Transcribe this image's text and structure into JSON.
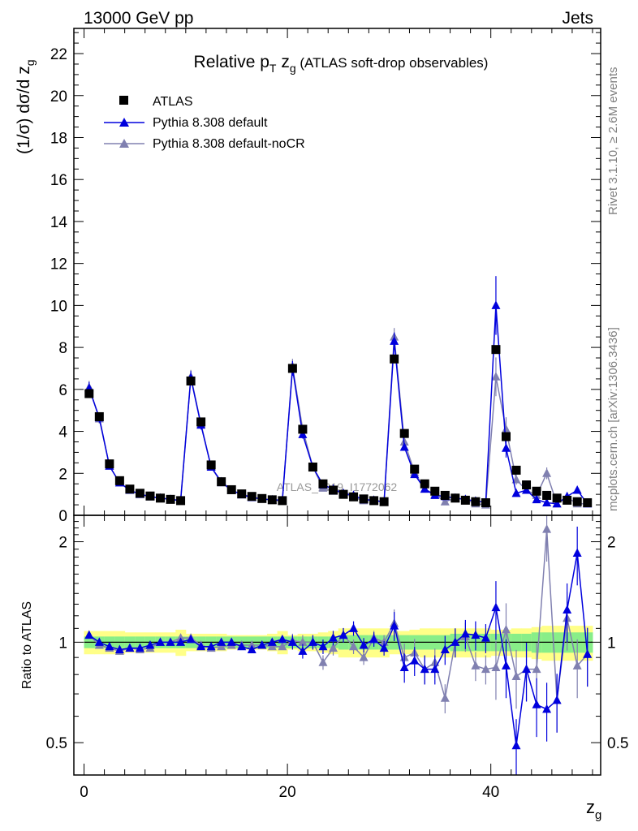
{
  "header": {
    "left": "13000 GeV pp",
    "right": "Jets"
  },
  "side": {
    "rivet": "Rivet 3.1.10, ≥ 2.6M events",
    "mcplots": "mcplots.cern.ch [arXiv:1306.3436]"
  },
  "watermark": "ATLAS_2019_I1772062",
  "colors": {
    "atlas": "#000000",
    "default": "#0000dd",
    "nocr": "#8080b0",
    "band_inner": "#88ee88",
    "band_outer": "#ffff88"
  },
  "chart_data": [
    {
      "type": "line",
      "panel": "main",
      "title_main": "Relative p",
      "title_sub_T": "T",
      "title_z": " z",
      "title_sub_g": "g",
      "title_rest": " (ATLAS soft-drop observables)",
      "ylabel": "(1/σ) dσ/d z",
      "ylabel_sub": "g",
      "ylim": [
        0,
        23.2
      ],
      "xlim": [
        -1.0,
        50.8
      ],
      "yticks": [
        0,
        2,
        4,
        6,
        8,
        10,
        12,
        14,
        16,
        18,
        20,
        22
      ],
      "x": [
        0.5,
        1.5,
        2.5,
        3.5,
        4.5,
        5.5,
        6.5,
        7.5,
        8.5,
        9.5,
        10.5,
        11.5,
        12.5,
        13.5,
        14.5,
        15.5,
        16.5,
        17.5,
        18.5,
        19.5,
        20.5,
        21.5,
        22.5,
        23.5,
        24.5,
        25.5,
        26.5,
        27.5,
        28.5,
        29.5,
        30.5,
        31.5,
        32.5,
        33.5,
        34.5,
        35.5,
        36.5,
        37.5,
        38.5,
        39.5,
        40.5,
        41.5,
        42.5,
        43.5,
        44.5,
        45.5,
        46.5,
        47.5,
        48.5,
        49.5
      ],
      "series": [
        {
          "name": "ATLAS",
          "values": [
            5.8,
            4.7,
            2.45,
            1.65,
            1.25,
            1.05,
            0.92,
            0.82,
            0.76,
            0.7,
            6.4,
            4.45,
            2.4,
            1.6,
            1.22,
            1.02,
            0.9,
            0.8,
            0.74,
            0.7,
            7.0,
            4.1,
            2.3,
            1.5,
            1.2,
            1.0,
            0.88,
            0.78,
            0.7,
            0.65,
            7.45,
            3.9,
            2.2,
            1.5,
            1.15,
            0.95,
            0.82,
            0.72,
            0.65,
            0.6,
            7.9,
            3.75,
            2.15,
            1.45,
            1.15,
            0.95,
            0.82,
            0.72,
            0.65,
            0.6
          ]
        },
        {
          "name": "Pythia 8.308 default",
          "values": [
            6.05,
            4.65,
            2.35,
            1.55,
            1.2,
            1.0,
            0.9,
            0.82,
            0.76,
            0.7,
            6.55,
            4.3,
            2.3,
            1.6,
            1.2,
            0.98,
            0.85,
            0.78,
            0.74,
            0.72,
            7.0,
            3.85,
            2.3,
            1.45,
            1.25,
            1.05,
            0.95,
            0.75,
            0.72,
            0.62,
            8.3,
            3.25,
            1.95,
            1.25,
            0.95,
            0.9,
            0.82,
            0.76,
            0.68,
            0.62,
            10.0,
            3.2,
            1.05,
            1.2,
            0.75,
            0.6,
            0.55,
            0.9,
            1.2,
            0.55
          ]
        },
        {
          "name": "Pythia 8.308 default-noCR",
          "values": [
            6.1,
            4.6,
            2.35,
            1.55,
            1.2,
            1.0,
            0.88,
            0.82,
            0.76,
            0.72,
            6.6,
            4.35,
            2.3,
            1.55,
            1.2,
            1.0,
            0.88,
            0.78,
            0.72,
            0.68,
            7.1,
            4.1,
            2.3,
            1.3,
            1.15,
            1.05,
            0.85,
            0.7,
            0.72,
            0.65,
            8.5,
            3.5,
            2.05,
            1.25,
            1.0,
            0.65,
            0.82,
            0.75,
            0.55,
            0.5,
            6.6,
            4.1,
            1.7,
            1.2,
            0.95,
            2.0,
            0.55,
            0.85,
            0.55,
            0.55
          ]
        }
      ]
    },
    {
      "type": "line",
      "panel": "ratio",
      "ylabel": "Ratio to ATLAS",
      "xlabel": "z",
      "xlabel_sub": "g",
      "ylim": [
        0.4,
        2.4
      ],
      "xlim": [
        -1.0,
        50.8
      ],
      "xticks": [
        0,
        20,
        40
      ],
      "yticks": [
        0.5,
        1,
        2
      ],
      "yscale": "log",
      "x": [
        0.5,
        1.5,
        2.5,
        3.5,
        4.5,
        5.5,
        6.5,
        7.5,
        8.5,
        9.5,
        10.5,
        11.5,
        12.5,
        13.5,
        14.5,
        15.5,
        16.5,
        17.5,
        18.5,
        19.5,
        20.5,
        21.5,
        22.5,
        23.5,
        24.5,
        25.5,
        26.5,
        27.5,
        28.5,
        29.5,
        30.5,
        31.5,
        32.5,
        33.5,
        34.5,
        35.5,
        36.5,
        37.5,
        38.5,
        39.5,
        40.5,
        41.5,
        42.5,
        43.5,
        44.5,
        45.5,
        46.5,
        47.5,
        48.5,
        49.5
      ],
      "band_inner": [
        0.04,
        0.04,
        0.04,
        0.04,
        0.04,
        0.04,
        0.04,
        0.04,
        0.04,
        0.04,
        0.04,
        0.04,
        0.04,
        0.04,
        0.04,
        0.04,
        0.04,
        0.04,
        0.04,
        0.04,
        0.04,
        0.04,
        0.04,
        0.04,
        0.04,
        0.05,
        0.05,
        0.05,
        0.05,
        0.05,
        0.05,
        0.05,
        0.05,
        0.05,
        0.05,
        0.05,
        0.06,
        0.06,
        0.06,
        0.06,
        0.06,
        0.06,
        0.06,
        0.06,
        0.07,
        0.07,
        0.07,
        0.07,
        0.07,
        0.07
      ],
      "band_outer": [
        0.08,
        0.08,
        0.08,
        0.08,
        0.07,
        0.07,
        0.07,
        0.07,
        0.07,
        0.09,
        0.06,
        0.06,
        0.06,
        0.06,
        0.05,
        0.05,
        0.05,
        0.05,
        0.06,
        0.08,
        0.05,
        0.06,
        0.06,
        0.07,
        0.08,
        0.1,
        0.1,
        0.1,
        0.1,
        0.1,
        0.08,
        0.08,
        0.09,
        0.1,
        0.1,
        0.1,
        0.1,
        0.1,
        0.1,
        0.1,
        0.09,
        0.09,
        0.1,
        0.1,
        0.11,
        0.12,
        0.12,
        0.12,
        0.12,
        0.12
      ],
      "series": [
        {
          "name": "Pythia 8.308 default",
          "values": [
            1.05,
            1.0,
            0.97,
            0.95,
            0.96,
            0.96,
            0.98,
            1.0,
            1.0,
            1.0,
            1.02,
            0.97,
            0.97,
            1.0,
            1.0,
            0.97,
            0.95,
            0.98,
            1.0,
            1.02,
            1.0,
            0.94,
            1.0,
            0.97,
            1.03,
            1.05,
            1.1,
            0.98,
            1.02,
            0.96,
            1.12,
            0.84,
            0.88,
            0.83,
            0.83,
            0.95,
            1.0,
            1.06,
            1.05,
            1.03,
            1.27,
            0.85,
            0.49,
            0.83,
            0.65,
            0.63,
            0.67,
            1.25,
            1.85,
            0.92
          ]
        },
        {
          "name": "Pythia 8.308 default-noCR",
          "values": [
            1.05,
            0.98,
            0.96,
            0.94,
            0.96,
            0.95,
            0.96,
            1.0,
            1.0,
            1.03,
            1.03,
            0.98,
            0.96,
            0.97,
            0.98,
            0.98,
            0.98,
            0.98,
            0.97,
            0.97,
            1.01,
            1.0,
            1.0,
            0.87,
            0.96,
            1.05,
            0.97,
            0.9,
            1.03,
            1.0,
            1.14,
            0.9,
            0.93,
            0.83,
            0.87,
            0.68,
            1.0,
            1.04,
            0.85,
            0.83,
            0.84,
            1.09,
            0.79,
            0.83,
            0.83,
            2.18,
            0.67,
            1.18,
            0.85,
            0.92
          ]
        }
      ]
    }
  ]
}
